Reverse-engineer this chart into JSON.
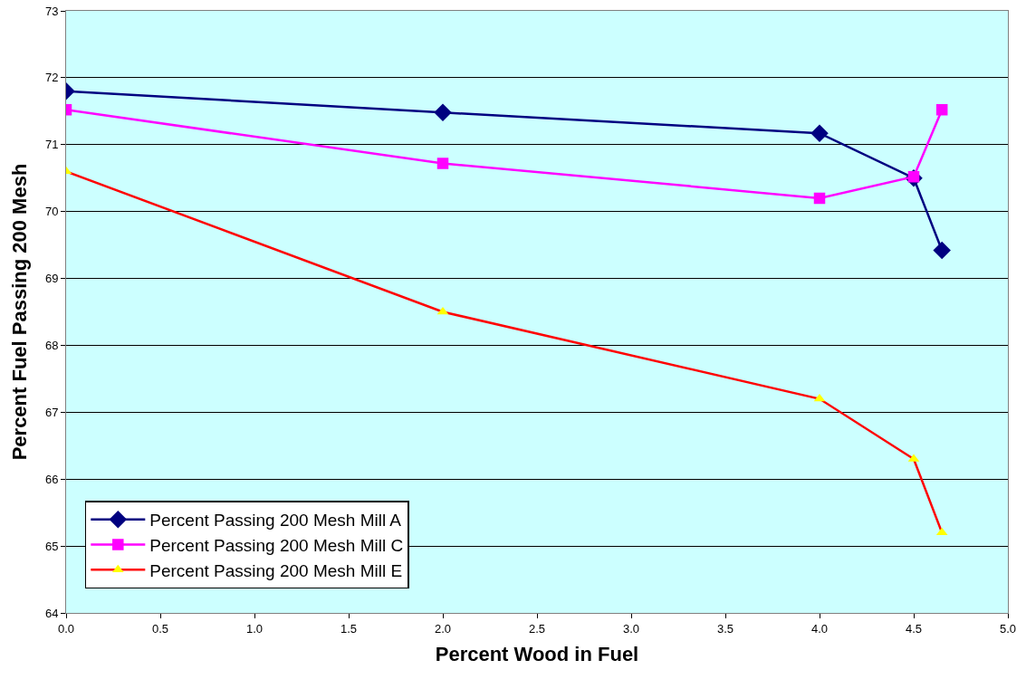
{
  "chart_data": {
    "type": "line",
    "xlabel": "Percent Wood in Fuel",
    "ylabel": "Percent Fuel Passing 200 Mesh",
    "xlim": [
      0,
      5
    ],
    "xticks": [
      {
        "value": 0,
        "label": "0.0"
      },
      {
        "value": 0.5,
        "label": "0.5"
      },
      {
        "value": 1,
        "label": "1.0"
      },
      {
        "value": 1.5,
        "label": "1.5"
      },
      {
        "value": 2,
        "label": "2.0"
      },
      {
        "value": 2.5,
        "label": "2.5"
      },
      {
        "value": 3,
        "label": "3.0"
      },
      {
        "value": 3.5,
        "label": "3.5"
      },
      {
        "value": 4,
        "label": "4.0"
      },
      {
        "value": 4.5,
        "label": "4.5"
      },
      {
        "value": 5,
        "label": "5.0"
      }
    ],
    "ylim": [
      64,
      73
    ],
    "yticks": [
      64,
      65,
      66,
      67,
      68,
      69,
      70,
      71,
      72,
      73
    ],
    "grid": "y",
    "legend": "bottom left",
    "x": [
      0,
      2,
      4,
      4.5,
      4.65
    ],
    "series": [
      {
        "name": "Percent Passing 200 Mesh Mill A",
        "color": "#000080",
        "marker": "diamond",
        "values": [
          71.8,
          71.48,
          71.17,
          70.5,
          69.42
        ]
      },
      {
        "name": "Percent Passing 200 Mesh Mill C",
        "color": "#ff00ff",
        "marker": "square",
        "values": [
          71.52,
          70.72,
          70.2,
          70.52,
          71.52
        ]
      },
      {
        "name": "Percent Passing 200 Mesh Mill E",
        "color": "#ff0000",
        "colors": [
          "#ffff00",
          "#ffff00",
          "#ffff00",
          "#ffff00",
          "#ffff00"
        ],
        "marker": "triangle",
        "values": [
          70.6,
          68.5,
          67.2,
          66.3,
          65.2
        ]
      }
    ]
  }
}
